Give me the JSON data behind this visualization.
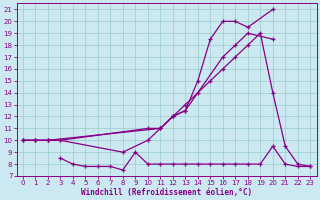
{
  "xlabel": "Windchill (Refroidissement éolien,°C)",
  "bg_color": "#cce8f0",
  "line_color": "#880088",
  "grid_color": "#99cccc",
  "ylim": [
    7,
    21.5
  ],
  "xlim": [
    -0.5,
    23.5
  ],
  "yticks": [
    7,
    8,
    9,
    10,
    11,
    12,
    13,
    14,
    15,
    16,
    17,
    18,
    19,
    20,
    21
  ],
  "xticks": [
    0,
    1,
    2,
    3,
    4,
    5,
    6,
    7,
    8,
    9,
    10,
    11,
    12,
    13,
    14,
    15,
    16,
    17,
    18,
    19,
    20,
    21,
    22,
    23
  ],
  "line1_x": [
    0,
    1,
    2,
    3,
    10,
    11,
    12,
    13,
    14,
    15,
    16,
    17,
    18,
    20
  ],
  "line1_y": [
    10,
    10,
    10,
    10,
    11,
    11,
    12,
    12.5,
    15,
    18.5,
    20,
    20,
    19.5,
    21
  ],
  "line2_x": [
    0,
    1,
    2,
    11,
    12,
    13,
    16,
    17,
    18,
    20
  ],
  "line2_y": [
    10,
    10,
    10,
    11,
    12,
    12.5,
    17,
    18,
    19,
    18.5
  ],
  "line3_x": [
    3,
    4,
    5,
    6,
    7,
    8,
    9,
    10,
    11,
    12,
    13,
    14,
    15,
    16,
    17,
    18,
    19,
    20,
    21,
    22,
    23
  ],
  "line3_y": [
    8.5,
    8.0,
    7.8,
    7.8,
    7.8,
    7.5,
    9.0,
    8.0,
    8.0,
    8.0,
    8.0,
    8.0,
    8.0,
    8.0,
    8.0,
    8.0,
    8.0,
    9.5,
    8.0,
    7.8,
    7.8
  ],
  "line4_x": [
    0,
    1,
    2,
    3,
    8,
    10,
    11,
    12,
    13,
    14,
    15,
    16,
    17,
    18,
    19,
    20,
    21,
    22,
    23
  ],
  "line4_y": [
    10,
    10,
    10,
    10,
    9,
    10,
    11,
    12,
    13,
    14,
    15,
    16,
    17,
    18,
    19,
    14,
    9.5,
    8.0,
    7.8
  ]
}
